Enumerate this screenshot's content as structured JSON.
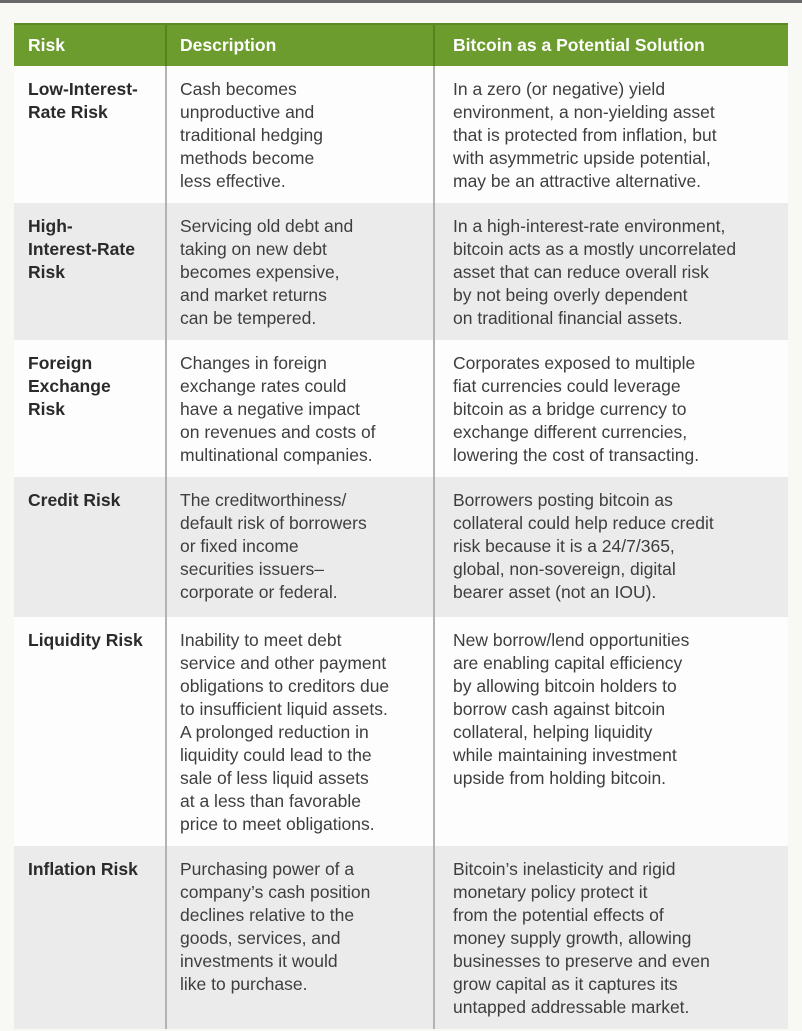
{
  "colors": {
    "header_green": "#6d9c2e",
    "header_divider_green": "#55831e",
    "body_divider_gray": "#b3b3b3",
    "row_white": "#fdfdfd",
    "row_alt_gray": "#ebebeb",
    "page_background": "#f8f8f5",
    "body_text": "#3e3e3e"
  },
  "table": {
    "columns": [
      {
        "label": "Risk"
      },
      {
        "label": "Description"
      },
      {
        "label": "Bitcoin as a Potential Solution"
      }
    ],
    "rows": [
      {
        "risk": "Low-Interest-\nRate Risk",
        "description": "Cash becomes\nunproductive and\ntraditional hedging\nmethods become\nless effective.",
        "solution": "In a zero (or negative) yield\nenvironment, a non-yielding asset\nthat is protected from inflation, but\nwith asymmetric upside potential,\nmay be an attractive alternative."
      },
      {
        "risk": "High-\nInterest-Rate\nRisk",
        "description": "Servicing old debt and\ntaking on new debt\nbecomes expensive,\nand market returns\ncan be tempered.",
        "solution": "In a high-interest-rate environment,\nbitcoin acts as a mostly uncorrelated\nasset that can reduce overall risk\nby not being overly dependent\non traditional financial assets."
      },
      {
        "risk": "Foreign\nExchange\nRisk",
        "description": "Changes in foreign\nexchange rates could\nhave a negative impact\non revenues and costs of\nmultinational companies.",
        "solution": "Corporates exposed to multiple\nfiat currencies could leverage\nbitcoin as a bridge currency to\nexchange different currencies,\nlowering the cost of transacting."
      },
      {
        "risk": "Credit Risk",
        "description": "The creditworthiness/\ndefault risk of borrowers\nor fixed income\nsecurities issuers–\ncorporate or federal.",
        "solution": "Borrowers posting bitcoin as\ncollateral could help reduce credit\nrisk because it is a 24/7/365,\nglobal, non-sovereign, digital\nbearer asset (not an IOU)."
      },
      {
        "risk": "Liquidity Risk",
        "description": "Inability to meet debt\nservice and other payment\nobligations to creditors due\nto insufficient liquid assets.\nA prolonged reduction in\nliquidity could lead to the\nsale of less liquid assets\nat a less than favorable\nprice to meet obligations.",
        "solution": "New borrow/lend opportunities\nare enabling capital efficiency\nby allowing bitcoin holders to\nborrow cash against bitcoin\ncollateral, helping liquidity\nwhile maintaining investment\nupside from holding bitcoin."
      },
      {
        "risk": "Inflation Risk",
        "description": "Purchasing power of a\ncompany’s cash position\ndeclines relative to the\ngoods, services, and\ninvestments it would\nlike to purchase.",
        "solution": "Bitcoin’s inelasticity and rigid\nmonetary policy protect it\nfrom the potential effects of\nmoney supply growth, allowing\nbusinesses to preserve and even\ngrow capital as it captures its\nuntapped addressable market."
      }
    ]
  }
}
